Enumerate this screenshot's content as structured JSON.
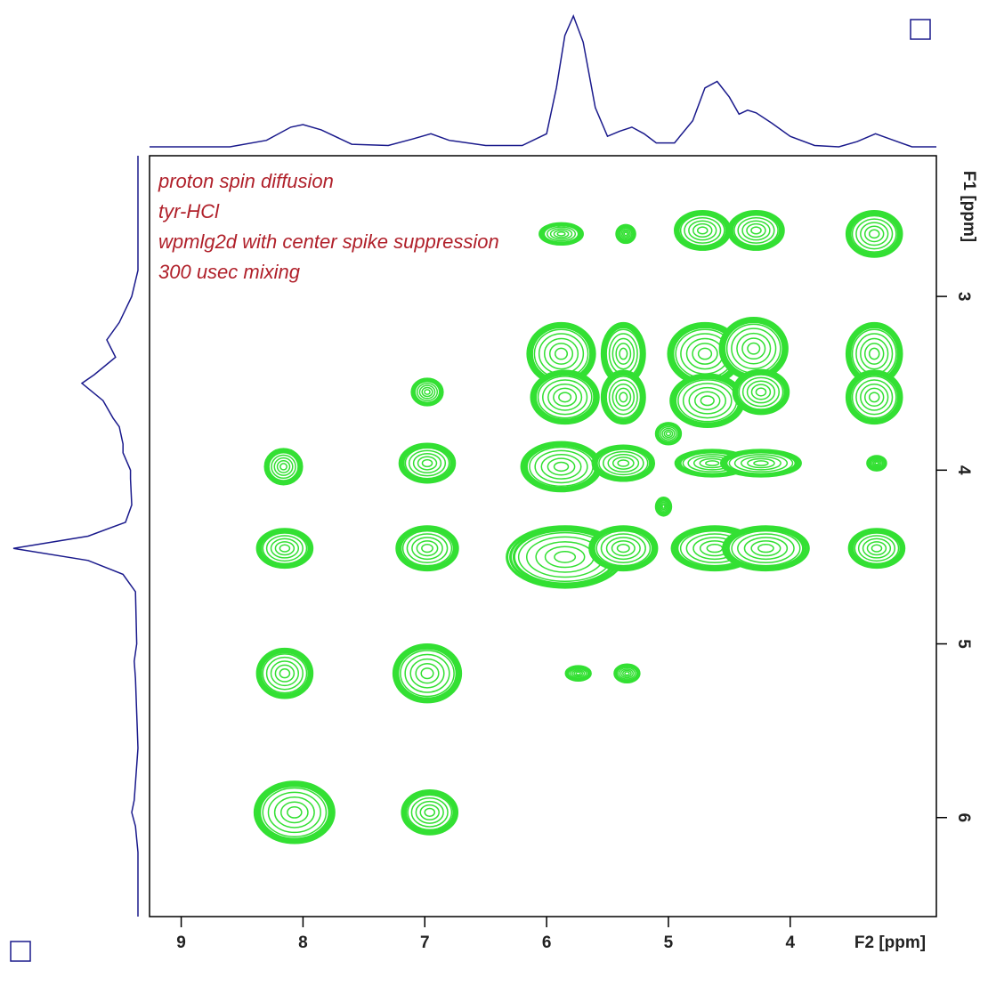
{
  "chart_data": {
    "type": "contour",
    "annotations": [
      "proton spin diffusion",
      "tyr-HCl",
      "wpmlg2d with center spike suppression",
      "300 usec mixing"
    ],
    "xlabel": "F2 [ppm]",
    "ylabel": "F1 [ppm]",
    "xlim": [
      9.26,
      2.8
    ],
    "ylim": [
      2.19,
      6.57
    ],
    "xticks": [
      9,
      8,
      7,
      6,
      5,
      4
    ],
    "yticks": [
      3,
      4,
      5,
      6
    ],
    "color": "#33e033",
    "projection_color": "#1a1a8c",
    "peaks": [
      {
        "x": 5.88,
        "y": 2.64,
        "w": 0.35,
        "h": 0.12
      },
      {
        "x": 5.35,
        "y": 2.64,
        "w": 0.15,
        "h": 0.1
      },
      {
        "x": 4.72,
        "y": 2.62,
        "w": 0.45,
        "h": 0.22
      },
      {
        "x": 4.28,
        "y": 2.62,
        "w": 0.45,
        "h": 0.22
      },
      {
        "x": 3.31,
        "y": 2.64,
        "w": 0.45,
        "h": 0.26
      },
      {
        "x": 5.88,
        "y": 3.33,
        "w": 0.55,
        "h": 0.35
      },
      {
        "x": 5.37,
        "y": 3.33,
        "w": 0.35,
        "h": 0.35
      },
      {
        "x": 4.7,
        "y": 3.33,
        "w": 0.6,
        "h": 0.35
      },
      {
        "x": 4.3,
        "y": 3.3,
        "w": 0.55,
        "h": 0.35
      },
      {
        "x": 3.31,
        "y": 3.33,
        "w": 0.45,
        "h": 0.35
      },
      {
        "x": 6.98,
        "y": 3.55,
        "w": 0.25,
        "h": 0.15
      },
      {
        "x": 5.85,
        "y": 3.58,
        "w": 0.55,
        "h": 0.3
      },
      {
        "x": 5.37,
        "y": 3.58,
        "w": 0.35,
        "h": 0.3
      },
      {
        "x": 4.68,
        "y": 3.6,
        "w": 0.6,
        "h": 0.3
      },
      {
        "x": 4.24,
        "y": 3.55,
        "w": 0.45,
        "h": 0.25
      },
      {
        "x": 3.31,
        "y": 3.58,
        "w": 0.45,
        "h": 0.3
      },
      {
        "x": 5.0,
        "y": 3.79,
        "w": 0.2,
        "h": 0.12
      },
      {
        "x": 8.16,
        "y": 3.98,
        "w": 0.3,
        "h": 0.2
      },
      {
        "x": 6.98,
        "y": 3.96,
        "w": 0.45,
        "h": 0.22
      },
      {
        "x": 5.88,
        "y": 3.98,
        "w": 0.65,
        "h": 0.28
      },
      {
        "x": 5.37,
        "y": 3.96,
        "w": 0.5,
        "h": 0.2
      },
      {
        "x": 4.64,
        "y": 3.96,
        "w": 0.6,
        "h": 0.15
      },
      {
        "x": 4.24,
        "y": 3.96,
        "w": 0.65,
        "h": 0.15
      },
      {
        "x": 3.29,
        "y": 3.96,
        "w": 0.15,
        "h": 0.08
      },
      {
        "x": 5.04,
        "y": 4.21,
        "w": 0.12,
        "h": 0.1
      },
      {
        "x": 8.15,
        "y": 4.45,
        "w": 0.45,
        "h": 0.22
      },
      {
        "x": 6.98,
        "y": 4.45,
        "w": 0.5,
        "h": 0.25
      },
      {
        "x": 5.85,
        "y": 4.5,
        "w": 0.95,
        "h": 0.35
      },
      {
        "x": 5.37,
        "y": 4.45,
        "w": 0.55,
        "h": 0.25
      },
      {
        "x": 4.62,
        "y": 4.45,
        "w": 0.7,
        "h": 0.25
      },
      {
        "x": 4.2,
        "y": 4.45,
        "w": 0.7,
        "h": 0.25
      },
      {
        "x": 3.29,
        "y": 4.45,
        "w": 0.45,
        "h": 0.22
      },
      {
        "x": 8.15,
        "y": 5.17,
        "w": 0.45,
        "h": 0.28
      },
      {
        "x": 6.98,
        "y": 5.17,
        "w": 0.55,
        "h": 0.33
      },
      {
        "x": 5.74,
        "y": 5.17,
        "w": 0.2,
        "h": 0.08
      },
      {
        "x": 5.34,
        "y": 5.17,
        "w": 0.2,
        "h": 0.1
      },
      {
        "x": 8.07,
        "y": 5.97,
        "w": 0.65,
        "h": 0.35
      },
      {
        "x": 6.96,
        "y": 5.97,
        "w": 0.45,
        "h": 0.25
      }
    ],
    "top_projection": {
      "x": [
        9.26,
        8.6,
        8.3,
        8.1,
        8.0,
        7.85,
        7.6,
        7.3,
        7.1,
        6.95,
        6.8,
        6.5,
        6.2,
        6.0,
        5.92,
        5.85,
        5.78,
        5.7,
        5.6,
        5.5,
        5.4,
        5.3,
        5.2,
        5.1,
        4.95,
        4.8,
        4.7,
        4.6,
        4.5,
        4.42,
        4.35,
        4.28,
        4.15,
        4.0,
        3.8,
        3.6,
        3.45,
        3.3,
        3.15,
        3.0,
        2.8
      ],
      "values": [
        0,
        0,
        5,
        15,
        17,
        13,
        2,
        1,
        6,
        10,
        5,
        1,
        1,
        10,
        45,
        85,
        100,
        80,
        30,
        8,
        12,
        15,
        10,
        3,
        3,
        20,
        45,
        50,
        38,
        25,
        28,
        26,
        18,
        8,
        1,
        0,
        4,
        10,
        5,
        0,
        0
      ]
    },
    "left_projection": {
      "x": [
        2.19,
        2.85,
        3.0,
        3.15,
        3.25,
        3.35,
        3.45,
        3.5,
        3.6,
        3.7,
        3.75,
        3.85,
        3.9,
        4.0,
        4.05,
        4.2,
        4.3,
        4.38,
        4.45,
        4.52,
        4.6,
        4.7,
        5.0,
        5.1,
        5.2,
        5.6,
        5.9,
        5.97,
        6.05,
        6.2,
        6.57
      ],
      "values": [
        0,
        0,
        5,
        15,
        25,
        18,
        35,
        45,
        28,
        20,
        15,
        12,
        12,
        6,
        6,
        5,
        10,
        40,
        100,
        40,
        12,
        2,
        1,
        3,
        2,
        0,
        3,
        5,
        2,
        0,
        0
      ]
    }
  }
}
